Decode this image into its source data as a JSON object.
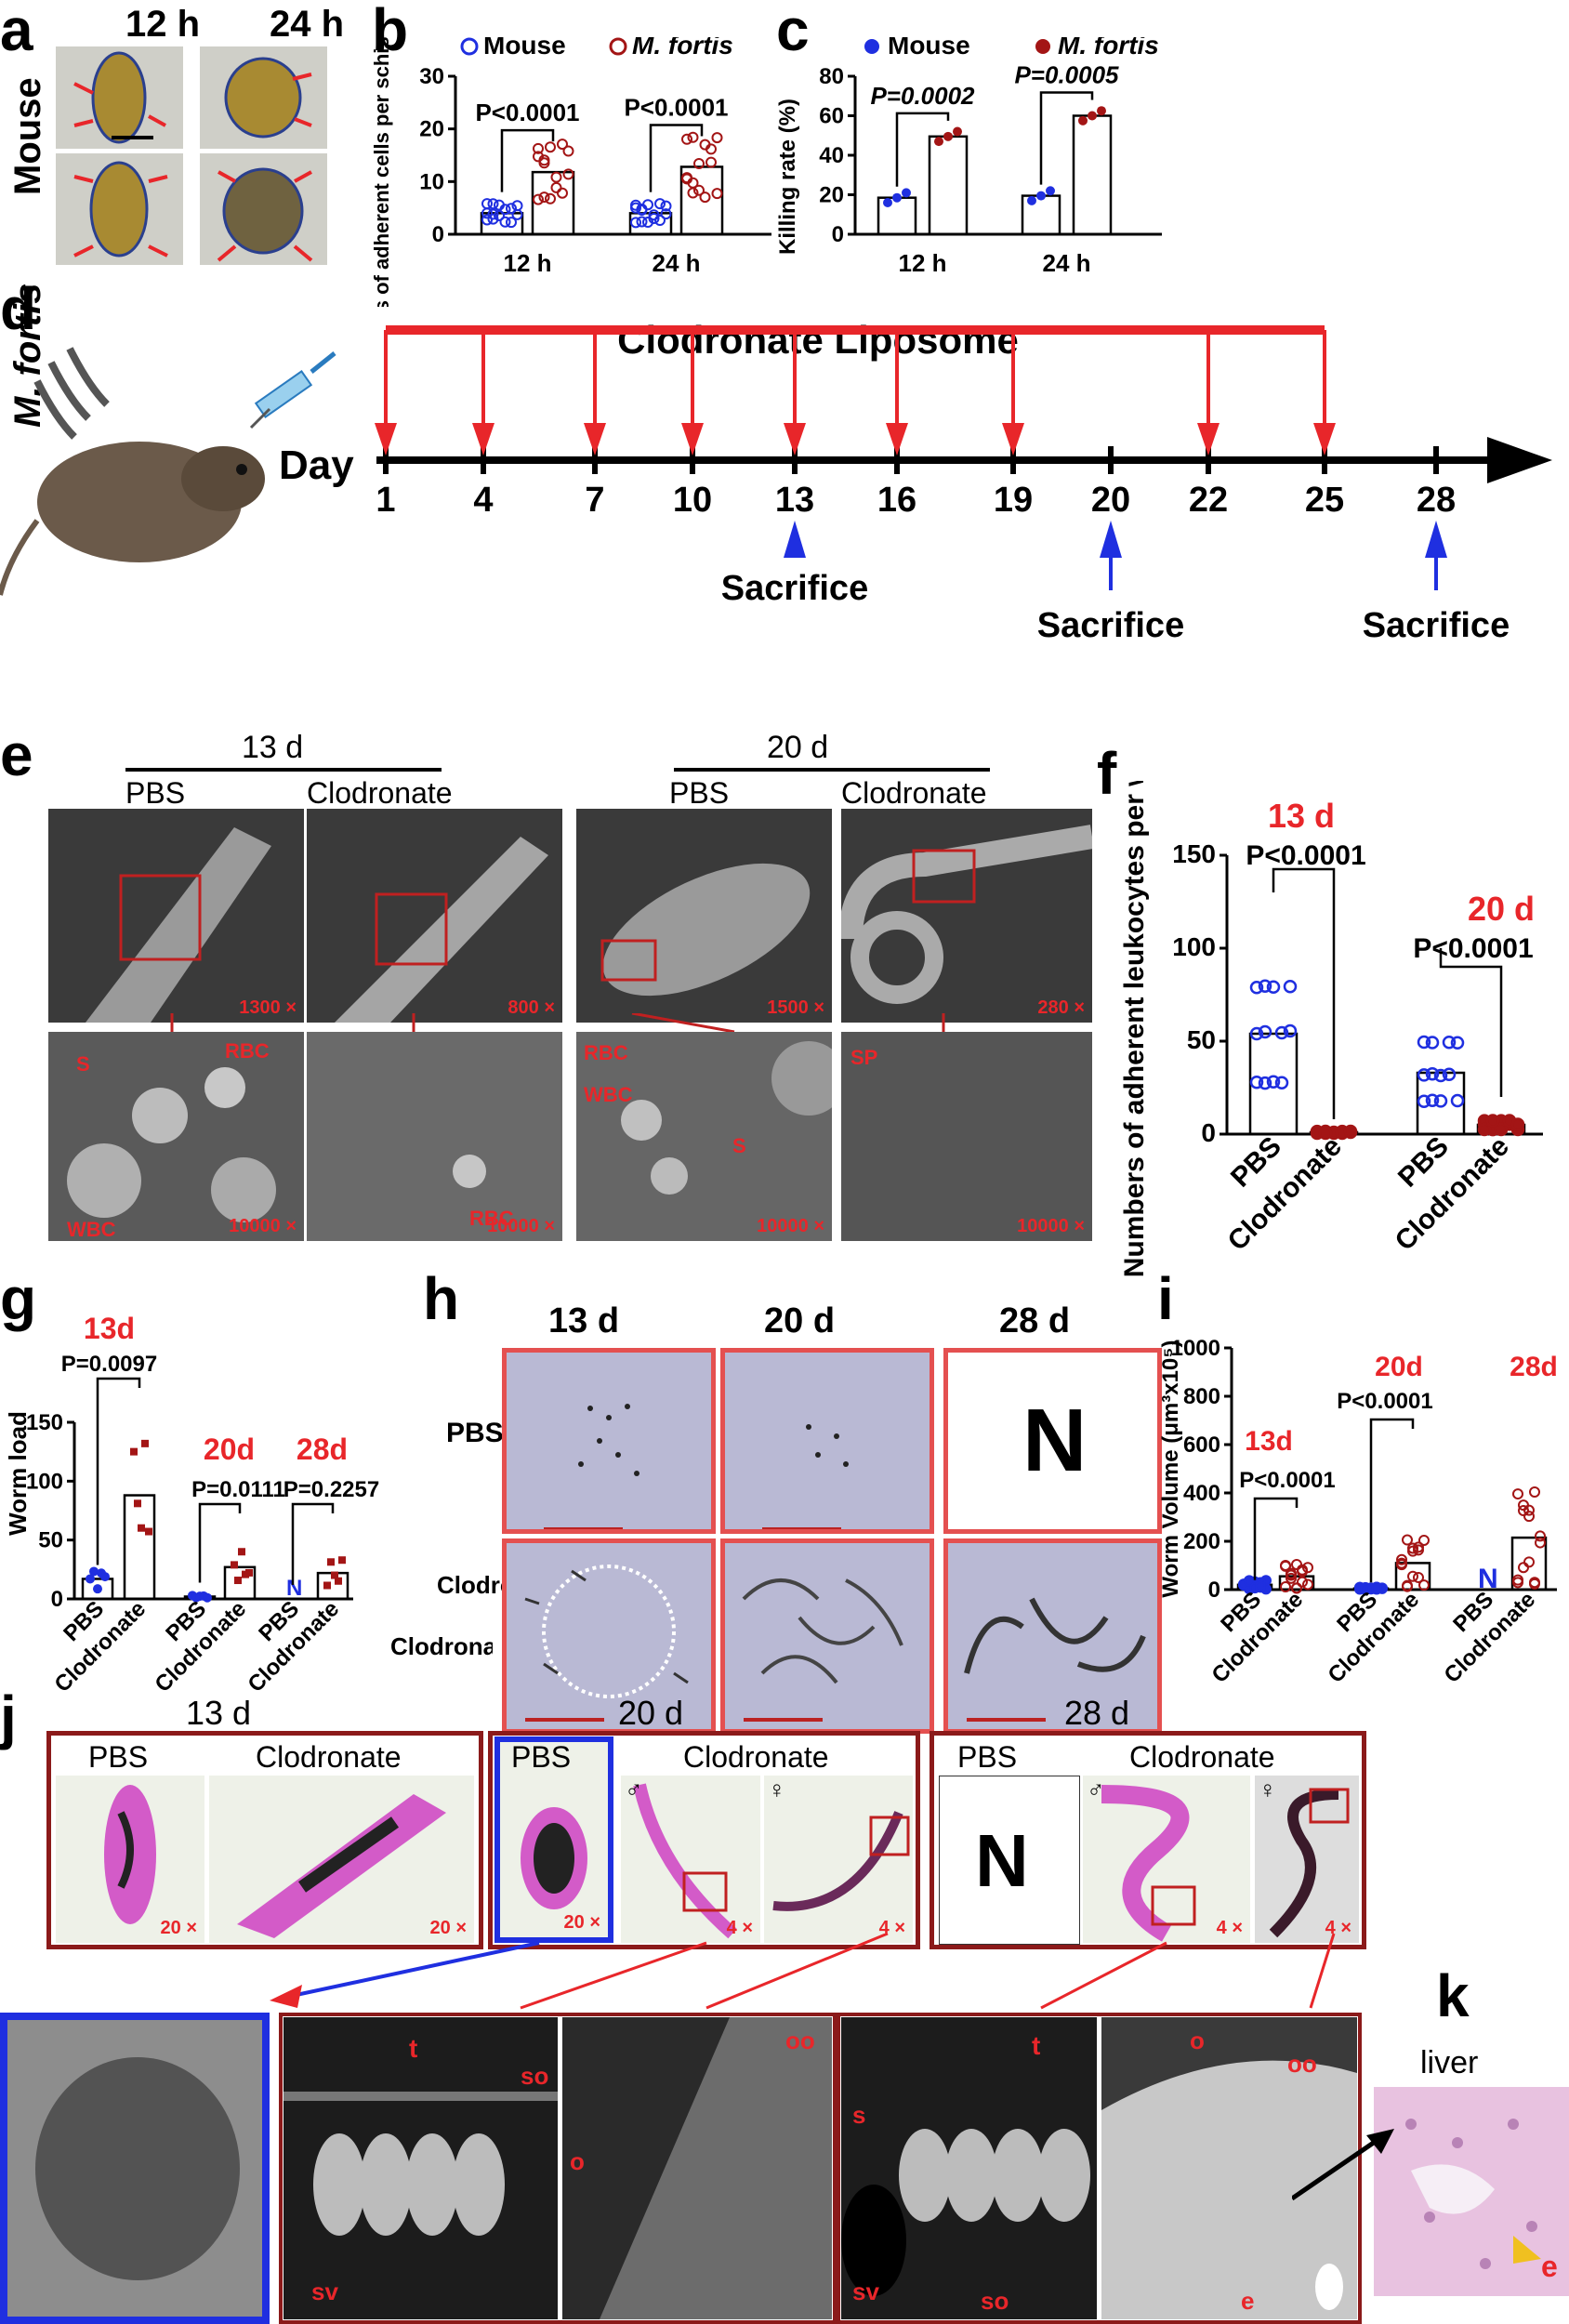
{
  "labels": {
    "a": "a",
    "b": "b",
    "c": "c",
    "d": "d",
    "e": "e",
    "f": "f",
    "g": "g",
    "h": "h",
    "i": "i",
    "j": "j",
    "k": "k"
  },
  "panel_a": {
    "col1": "12 h",
    "col2": "24 h",
    "row1": "Mouse",
    "row2": "M. fortis"
  },
  "panel_d": {
    "title": "Clodronate Liposome",
    "day_label": "Day",
    "days": [
      "1",
      "4",
      "7",
      "10",
      "13",
      "16",
      "19",
      "20",
      "22",
      "25",
      "28"
    ],
    "sacrifice": "Sacrifice"
  },
  "panel_e": {
    "group1": "13 d",
    "group2": "20 d",
    "pbs": "PBS",
    "clod": "Clodronate",
    "mags_top": [
      "1300 ×",
      "800 ×",
      "1500 ×",
      "280 ×"
    ],
    "mags_bottom": [
      "10000 ×",
      "10000 ×",
      "10000 ×",
      "10000 ×"
    ],
    "anno": {
      "s": "S",
      "rbc": "RBC",
      "wbc": "WBC",
      "sp": "SP"
    }
  },
  "panel_h": {
    "col1": "13 d",
    "col2": "20 d",
    "col3": "28 d",
    "row1": "PBS",
    "row2": "Clodronate",
    "none": "N"
  },
  "panel_j": {
    "g1": "13 d",
    "g2": "20 d",
    "g3": "28 d",
    "pbs": "PBS",
    "clod": "Clodronate",
    "male": "♂",
    "female": "♀",
    "none": "N",
    "mags": [
      "20 ×",
      "20 ×",
      "20 ×",
      "4 ×",
      "4 ×",
      "4 ×",
      "4 ×"
    ],
    "anno": {
      "t": "t",
      "so": "so",
      "oo": "oo",
      "o": "o",
      "sv": "sv",
      "s": "s",
      "e": "e"
    }
  },
  "panel_k": {
    "title": "liver",
    "e": "e"
  },
  "colors": {
    "mouse": "#1f2fe0",
    "fortis": "#a31515",
    "red": "#e8262a",
    "axis": "#000000",
    "blue": "#1f2fe0"
  },
  "chart_data": [
    {
      "id": "b",
      "type": "bar",
      "ylabel": "Numbers of  adherent cells per schistosomula",
      "categories": [
        "12 h",
        "24 h"
      ],
      "ylim": [
        0,
        30
      ],
      "yticks": [
        0,
        10,
        20,
        30
      ],
      "legend": [
        "Mouse",
        "M. fortis"
      ],
      "series": [
        {
          "name": "Mouse",
          "values": [
            4,
            4
          ]
        },
        {
          "name": "M. fortis",
          "values": [
            11.8,
            12.8
          ]
        }
      ],
      "annotations": [
        "P<0.0001",
        "P<0.0001"
      ]
    },
    {
      "id": "c",
      "type": "bar",
      "ylabel": "Killing rate (%)",
      "categories": [
        "12 h",
        "24 h"
      ],
      "ylim": [
        0,
        80
      ],
      "yticks": [
        0,
        20,
        40,
        60,
        80
      ],
      "legend": [
        "Mouse",
        "M. fortis"
      ],
      "series": [
        {
          "name": "Mouse",
          "values": [
            18.5,
            19.5
          ]
        },
        {
          "name": "M. fortis",
          "values": [
            49.5,
            60
          ]
        }
      ],
      "annotations": [
        "P=0.0002",
        "P=0.0005"
      ]
    },
    {
      "id": "f",
      "type": "bar",
      "ylabel": "Numbers of adherent leukocytes per worm",
      "categories": [
        "PBS",
        "Clodronate",
        "PBS",
        "Clodronate"
      ],
      "ylim": [
        0,
        150
      ],
      "yticks": [
        0,
        50,
        100,
        150
      ],
      "values": [
        54,
        1,
        33,
        5
      ],
      "groups": [
        "13 d",
        "20 d"
      ],
      "annotations": [
        "P<0.0001",
        "P<0.0001"
      ]
    },
    {
      "id": "g",
      "type": "bar",
      "ylabel": "Worm load",
      "categories": [
        "PBS",
        "Clodronate",
        "PBS",
        "Clodronate",
        "PBS",
        "Clodronate"
      ],
      "ylim": [
        0,
        150
      ],
      "yticks": [
        0,
        50,
        100,
        150
      ],
      "values": [
        17,
        88,
        2,
        27,
        0,
        22
      ],
      "groups": [
        "13d",
        "20d",
        "28d"
      ],
      "annotations": [
        "P=0.0097",
        "P=0.0111",
        "P=0.2257"
      ],
      "none": "N"
    },
    {
      "id": "i",
      "type": "bar",
      "ylabel": "Worm Volume (μm³x10⁵)",
      "categories": [
        "PBS",
        "Clodronate",
        "PBS",
        "Clodronate",
        "PBS",
        "Clodronate"
      ],
      "ylim": [
        0,
        1000
      ],
      "yticks": [
        0,
        200,
        400,
        600,
        800,
        1000
      ],
      "values": [
        20,
        55,
        5,
        110,
        0,
        215
      ],
      "groups": [
        "13d",
        "20d",
        "28d"
      ],
      "annotations": [
        "P<0.0001",
        "P<0.0001"
      ],
      "none": "N"
    }
  ]
}
